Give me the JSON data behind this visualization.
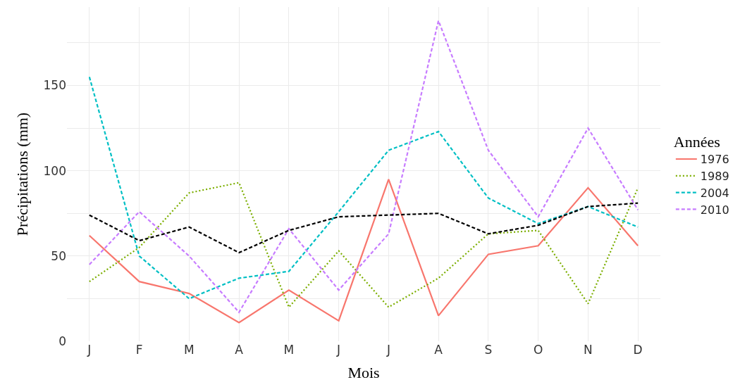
{
  "chart_data": {
    "type": "line",
    "xlabel": "Mois",
    "ylabel": "Précipitations (mm)",
    "legend_title": "Années",
    "categories": [
      "J",
      "F",
      "M",
      "A",
      "M",
      "J",
      "J",
      "A",
      "S",
      "O",
      "N",
      "D"
    ],
    "series": [
      {
        "name": "1976",
        "color": "#f8766d",
        "line_style": "solid",
        "values": [
          62,
          35,
          28,
          11,
          30,
          12,
          95,
          15,
          51,
          56,
          90,
          56
        ]
      },
      {
        "name": "1989",
        "color": "#7cae00",
        "line_style": "dotted",
        "values": [
          35,
          55,
          87,
          93,
          20,
          53,
          20,
          37,
          63,
          65,
          22,
          90
        ]
      },
      {
        "name": "2004",
        "color": "#00bfc4",
        "line_style": "dashed",
        "values": [
          155,
          50,
          25,
          37,
          41,
          76,
          112,
          123,
          84,
          69,
          79,
          67
        ]
      },
      {
        "name": "2010",
        "color": "#c77cff",
        "line_style": "dashed",
        "values": [
          45,
          76,
          50,
          17,
          66,
          30,
          63,
          188,
          112,
          73,
          125,
          77
        ]
      },
      {
        "color": "#000000",
        "line_style": "dashed",
        "values": [
          74,
          59,
          67,
          52,
          65,
          73,
          74,
          75,
          63,
          68,
          79,
          81
        ]
      }
    ],
    "ylim": [
      0,
      196
    ],
    "yticks": [
      0,
      {
        "value": 25,
        "label": null
      },
      50,
      {
        "value": 75,
        "label": null
      },
      100,
      {
        "value": 125,
        "label": null
      },
      150,
      {
        "value": 175,
        "label": null
      }
    ],
    "grid": true,
    "legend": "right",
    "marker": "none"
  }
}
